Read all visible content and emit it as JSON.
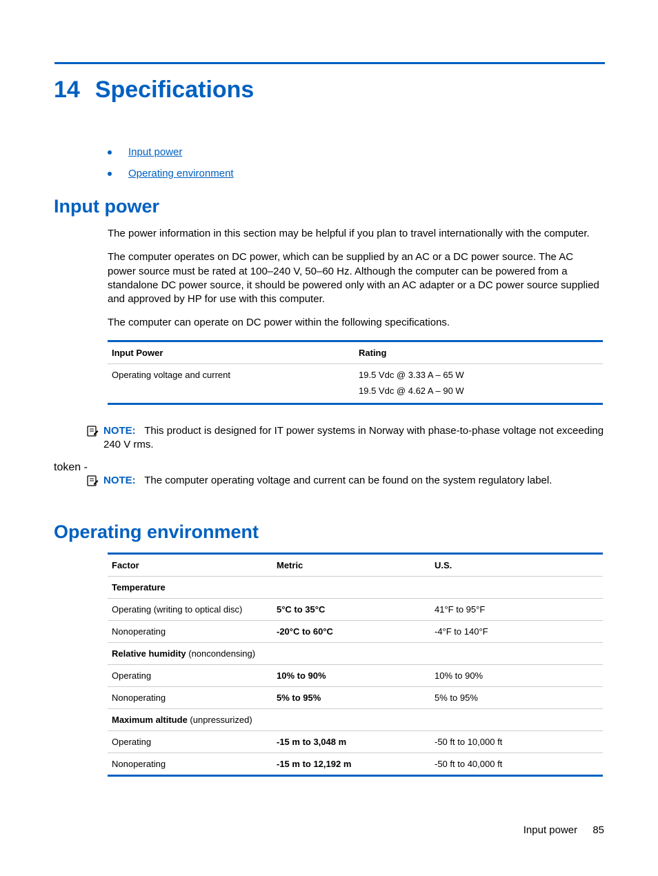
{
  "chapter": {
    "number": "14",
    "title": "Specifications"
  },
  "toc": {
    "items": [
      "Input power",
      "Operating environment"
    ]
  },
  "input_power": {
    "heading": "Input power",
    "p1": "The power information in this section may be helpful if you plan to travel internationally with the computer.",
    "p2": "The computer operates on DC power, which can be supplied by an AC or a DC power source. The AC power source must be rated at 100–240 V, 50–60 Hz. Although the computer can be powered from a standalone DC power source, it should be powered only with an AC adapter or a DC power source supplied and approved by HP for use with this computer.",
    "p3": "The computer can operate on DC power within the following specifications.",
    "table": {
      "col1": "Input Power",
      "col2": "Rating",
      "row_label": "Operating voltage and current",
      "rating1": "19.5 Vdc @ 3.33 A – 65 W",
      "rating2": "19.5 Vdc @ 4.62 A – 90 W"
    },
    "note1": {
      "label": "NOTE:",
      "text": "This product is designed for IT power systems in Norway with phase-to-phase voltage not exceeding 240 V rms."
    },
    "note2": {
      "label": "NOTE:",
      "text": "The computer operating voltage and current can be found on the system regulatory label."
    }
  },
  "operating_env": {
    "heading": "Operating environment",
    "headers": {
      "c1": "Factor",
      "c2": "Metric",
      "c3": "U.S."
    },
    "rows": [
      {
        "type": "section",
        "c1_bold": "Temperature",
        "c1_rest": ""
      },
      {
        "type": "data",
        "c1": "Operating (writing to optical disc)",
        "c2": "5°C to 35°C",
        "c3": "41°F to 95°F"
      },
      {
        "type": "data",
        "c1": "Nonoperating",
        "c2": "-20°C to 60°C",
        "c3": "-4°F to 140°F"
      },
      {
        "type": "section",
        "c1_bold": "Relative humidity",
        "c1_rest": " (noncondensing)"
      },
      {
        "type": "data",
        "c1": "Operating",
        "c2": "10% to 90%",
        "c3": "10% to 90%"
      },
      {
        "type": "data",
        "c1": "Nonoperating",
        "c2": "5% to 95%",
        "c3": "5% to 95%"
      },
      {
        "type": "section",
        "c1_bold": "Maximum altitude",
        "c1_rest": " (unpressurized)"
      },
      {
        "type": "data",
        "c1": "Operating",
        "c2": "-15 m to 3,048 m",
        "c3": "-50 ft to 10,000 ft"
      },
      {
        "type": "data",
        "c1": "Nonoperating",
        "c2": "-15 m to 12,192 m",
        "c3": "-50 ft to 40,000 ft"
      }
    ]
  },
  "footer": {
    "section": "Input power",
    "page": "85"
  },
  "colors": {
    "accent": "#0060c0",
    "rule_grey": "#cdcdcd",
    "text": "#000000"
  }
}
